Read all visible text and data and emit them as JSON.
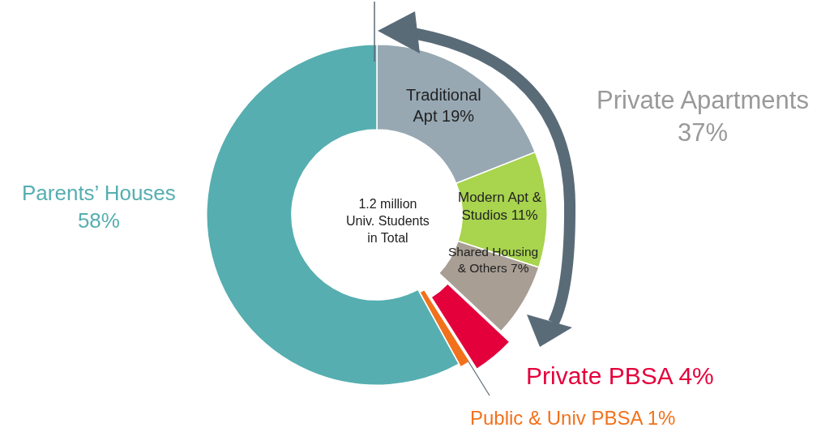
{
  "chart_data": {
    "type": "donut",
    "categories": [
      "Traditional Apt",
      "Modern Apt & Studios",
      "Shared Housing & Others",
      "Private PBSA",
      "Public & Univ PBSA",
      "Parents’ Houses"
    ],
    "values": [
      19,
      11,
      7,
      4,
      1,
      58
    ],
    "value_labels": [
      "19%",
      "11%",
      "7%",
      "4%",
      "1%",
      "58%"
    ],
    "colors": [
      "#97a8b3",
      "#a8d44e",
      "#a89e94",
      "#e4003b",
      "#f2711c",
      "#56aeb0"
    ],
    "annotations": [
      "1.2 million Univ. Students in Total",
      "Private Apartments 37%"
    ],
    "legend": false
  }
}
